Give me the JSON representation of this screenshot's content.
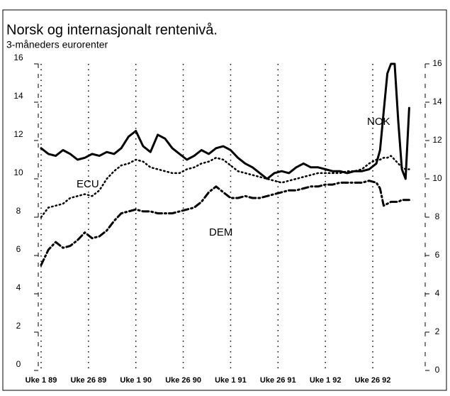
{
  "chart_data": {
    "type": "line",
    "title": "Norsk og internasjonalt rentenivå.",
    "subtitle": "3-måneders eurorenter",
    "x": [
      0,
      4,
      8,
      12,
      16,
      20,
      24,
      28,
      32,
      36,
      40,
      44,
      48,
      52,
      56,
      60,
      64,
      68,
      72,
      76,
      80,
      84,
      88,
      92,
      96,
      100,
      104,
      108,
      112,
      116,
      120,
      124,
      128,
      132,
      136,
      140,
      144,
      148,
      152,
      156,
      160,
      164,
      168,
      172,
      176,
      180,
      184,
      186,
      188,
      190,
      192,
      194,
      196,
      198,
      200,
      202
    ],
    "xlim": [
      0,
      203
    ],
    "xticks": [
      {
        "value": 0,
        "label": "Uke 1 89"
      },
      {
        "value": 26,
        "label": "Uke 26 89"
      },
      {
        "value": 52,
        "label": "Uke 1 90"
      },
      {
        "value": 78,
        "label": "Uke 26 90"
      },
      {
        "value": 104,
        "label": "Uke 1 91"
      },
      {
        "value": 130,
        "label": "Uke 26 91"
      },
      {
        "value": 156,
        "label": "Uke 1 92"
      },
      {
        "value": 182,
        "label": "Uke 26 92"
      }
    ],
    "ylim": [
      0,
      16
    ],
    "yticks": [
      0,
      2,
      4,
      6,
      8,
      10,
      12,
      14,
      16
    ],
    "grid": true,
    "series": [
      {
        "name": "NOK",
        "color": "#000000",
        "line_style": "solid",
        "values": [
          11.6,
          11.3,
          11.2,
          11.5,
          11.3,
          11.0,
          11.1,
          11.3,
          11.2,
          11.4,
          11.3,
          11.6,
          12.2,
          12.5,
          11.7,
          11.4,
          12.3,
          12.1,
          11.6,
          11.3,
          11.0,
          11.2,
          11.5,
          11.3,
          11.6,
          11.7,
          11.5,
          11.1,
          10.8,
          10.6,
          10.3,
          10.0,
          10.3,
          10.4,
          10.3,
          10.6,
          10.8,
          10.6,
          10.6,
          10.5,
          10.4,
          10.4,
          10.3,
          10.4,
          10.4,
          10.5,
          10.8,
          11.5,
          13.5,
          15.5,
          16.0,
          16.0,
          13.0,
          10.5,
          10.0,
          13.7
        ]
      },
      {
        "name": "ECU",
        "color": "#000000",
        "line_style": "dotted",
        "values": [
          8.0,
          8.5,
          8.6,
          8.7,
          9.0,
          9.1,
          9.2,
          9.1,
          9.4,
          10.0,
          10.4,
          10.7,
          10.8,
          11.0,
          10.9,
          10.6,
          10.5,
          10.4,
          10.3,
          10.3,
          10.5,
          10.6,
          10.8,
          10.9,
          11.1,
          11.0,
          10.7,
          10.4,
          10.3,
          10.2,
          10.1,
          10.0,
          9.9,
          9.8,
          9.9,
          10.0,
          10.1,
          10.2,
          10.3,
          10.3,
          10.3,
          10.3,
          10.4,
          10.4,
          10.5,
          10.8,
          11.0,
          11.0,
          11.1,
          11.1,
          11.2,
          11.0,
          10.8,
          10.6,
          10.5,
          10.5
        ]
      },
      {
        "name": "DEM",
        "color": "#000000",
        "line_style": "dashdot",
        "values": [
          5.5,
          6.3,
          6.7,
          6.4,
          6.5,
          6.8,
          7.2,
          6.9,
          7.0,
          7.3,
          7.8,
          8.2,
          8.3,
          8.4,
          8.3,
          8.3,
          8.2,
          8.2,
          8.2,
          8.3,
          8.4,
          8.5,
          8.8,
          9.3,
          9.6,
          9.3,
          9.0,
          9.0,
          9.1,
          9.0,
          9.0,
          9.1,
          9.2,
          9.3,
          9.4,
          9.4,
          9.5,
          9.6,
          9.6,
          9.7,
          9.7,
          9.8,
          9.8,
          9.8,
          9.8,
          9.9,
          9.8,
          9.5,
          8.6,
          8.7,
          8.8,
          8.8,
          8.8,
          8.9,
          8.9,
          8.9
        ]
      }
    ]
  }
}
